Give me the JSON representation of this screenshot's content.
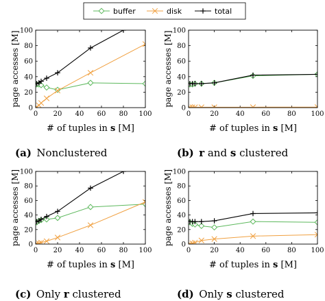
{
  "legend": {
    "entries": [
      {
        "label": "buffer",
        "color": "#5cb85c",
        "marker": "diamond"
      },
      {
        "label": "disk",
        "color": "#f0a040",
        "marker": "x"
      },
      {
        "label": "total",
        "color": "#000000",
        "marker": "plus"
      }
    ]
  },
  "chart_data": [
    {
      "type": "line",
      "caption_letter": "(a)",
      "caption_parts": [
        {
          "text": "Nonclustered",
          "bold": false
        }
      ],
      "xlabel_parts": [
        {
          "text": "# of tuples in ",
          "bold": false
        },
        {
          "text": "s",
          "bold": true
        },
        {
          "text": " [M]",
          "bold": false
        }
      ],
      "ylabel": "page accesses [M]",
      "xlim": [
        0,
        100
      ],
      "ylim": [
        0,
        100
      ],
      "xticks": [
        0,
        20,
        40,
        60,
        80,
        100
      ],
      "yticks": [
        0,
        20,
        40,
        60,
        80,
        100
      ],
      "series": [
        {
          "name": "buffer",
          "x": [
            1,
            3,
            5,
            10,
            20,
            50,
            100
          ],
          "y": [
            30,
            30,
            29,
            26,
            23,
            32,
            31
          ]
        },
        {
          "name": "disk",
          "x": [
            1,
            3,
            5,
            10,
            20,
            50,
            100
          ],
          "y": [
            1,
            3,
            6,
            12,
            22,
            45,
            82
          ]
        },
        {
          "name": "total",
          "x": [
            1,
            3,
            5,
            10,
            20,
            50,
            80
          ],
          "y": [
            31,
            32,
            34,
            38,
            45,
            77,
            100
          ]
        }
      ]
    },
    {
      "type": "line",
      "caption_letter": "(b)",
      "caption_parts": [
        {
          "text": "r",
          "bold": true
        },
        {
          "text": " and ",
          "bold": false
        },
        {
          "text": "s",
          "bold": true
        },
        {
          "text": " clustered",
          "bold": false
        }
      ],
      "xlabel_parts": [
        {
          "text": "# of tuples in ",
          "bold": false
        },
        {
          "text": "s",
          "bold": true
        },
        {
          "text": " [M]",
          "bold": false
        }
      ],
      "ylabel": "page accesses [M]",
      "xlim": [
        0,
        100
      ],
      "ylim": [
        0,
        100
      ],
      "xticks": [
        0,
        20,
        40,
        60,
        80,
        100
      ],
      "yticks": [
        0,
        20,
        40,
        60,
        80,
        100
      ],
      "series": [
        {
          "name": "buffer",
          "x": [
            1,
            3,
            5,
            10,
            20,
            50,
            100
          ],
          "y": [
            30,
            30,
            31,
            31,
            32,
            41,
            43
          ]
        },
        {
          "name": "disk",
          "x": [
            1,
            3,
            5,
            10,
            20,
            50,
            100
          ],
          "y": [
            0.5,
            0.5,
            0.5,
            0.5,
            0.5,
            0.6,
            0.7
          ]
        },
        {
          "name": "total",
          "x": [
            1,
            3,
            5,
            10,
            20,
            50,
            100
          ],
          "y": [
            31,
            31,
            31,
            31,
            32,
            42,
            43
          ]
        }
      ]
    },
    {
      "type": "line",
      "caption_letter": "(c)",
      "caption_parts": [
        {
          "text": "Only ",
          "bold": false
        },
        {
          "text": "r",
          "bold": true
        },
        {
          "text": " clustered",
          "bold": false
        }
      ],
      "xlabel_parts": [
        {
          "text": "# of tuples in ",
          "bold": false
        },
        {
          "text": "s",
          "bold": true
        },
        {
          "text": " [M]",
          "bold": false
        }
      ],
      "ylabel": "page accesses [M]",
      "xlim": [
        0,
        100
      ],
      "ylim": [
        0,
        100
      ],
      "xticks": [
        0,
        20,
        40,
        60,
        80,
        100
      ],
      "yticks": [
        0,
        20,
        40,
        60,
        80,
        100
      ],
      "series": [
        {
          "name": "buffer",
          "x": [
            1,
            3,
            5,
            10,
            20,
            50,
            100
          ],
          "y": [
            30,
            32,
            33,
            34,
            36,
            51,
            55
          ]
        },
        {
          "name": "disk",
          "x": [
            1,
            3,
            5,
            10,
            20,
            50,
            100
          ],
          "y": [
            1,
            1,
            2,
            4,
            9,
            26,
            58
          ]
        },
        {
          "name": "total",
          "x": [
            1,
            3,
            5,
            10,
            20,
            50,
            80
          ],
          "y": [
            31,
            32,
            34,
            38,
            45,
            77,
            100
          ]
        }
      ]
    },
    {
      "type": "line",
      "caption_letter": "(d)",
      "caption_parts": [
        {
          "text": "Only ",
          "bold": false
        },
        {
          "text": "s",
          "bold": true
        },
        {
          "text": " clustered",
          "bold": false
        }
      ],
      "xlabel_parts": [
        {
          "text": "# of tuples in ",
          "bold": false
        },
        {
          "text": "s",
          "bold": true
        },
        {
          "text": " [M]",
          "bold": false
        }
      ],
      "ylabel": "page accesses [M]",
      "xlim": [
        0,
        100
      ],
      "ylim": [
        0,
        100
      ],
      "xticks": [
        0,
        20,
        40,
        60,
        80,
        100
      ],
      "yticks": [
        0,
        20,
        40,
        60,
        80,
        100
      ],
      "series": [
        {
          "name": "buffer",
          "x": [
            1,
            3,
            5,
            10,
            20,
            50,
            100
          ],
          "y": [
            30,
            28,
            27,
            25,
            23,
            31,
            30
          ]
        },
        {
          "name": "disk",
          "x": [
            1,
            3,
            5,
            10,
            20,
            50,
            100
          ],
          "y": [
            0.5,
            1,
            2,
            5,
            7,
            11,
            13
          ]
        },
        {
          "name": "total",
          "x": [
            1,
            3,
            5,
            10,
            20,
            50,
            100
          ],
          "y": [
            31,
            31,
            31,
            31,
            32,
            42,
            43
          ]
        }
      ]
    }
  ]
}
